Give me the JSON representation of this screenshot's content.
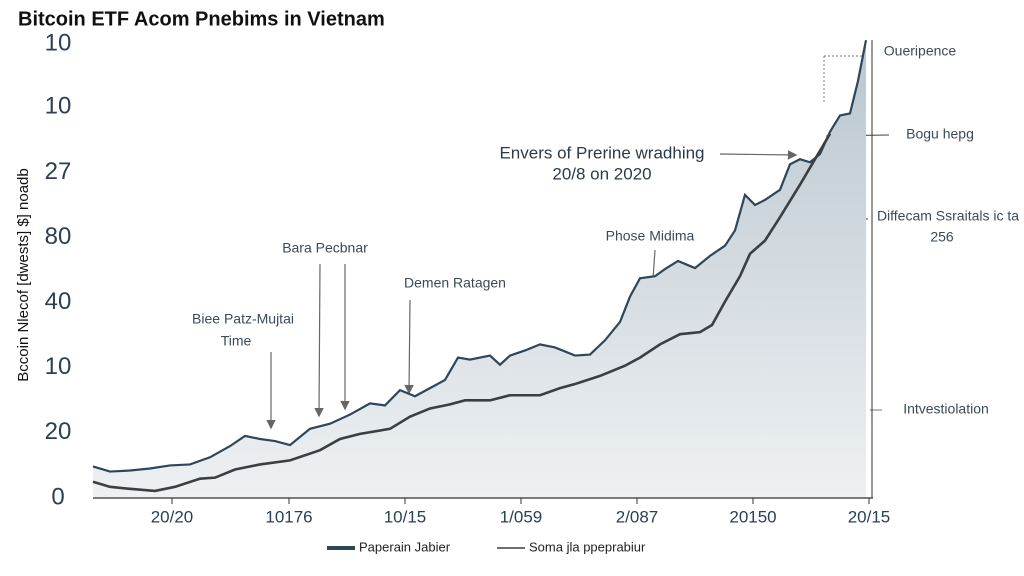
{
  "chart_data": {
    "type": "line",
    "title": "Bitcoin ETF Acom Pnebims in Vietnam",
    "y_label": "Bccoin Nlecof [dwests] $] noadb",
    "xlim": [
      0,
      777
    ],
    "ylim": [
      0,
      460
    ],
    "xticks": [
      {
        "value": 79,
        "label": "20/20"
      },
      {
        "value": 196,
        "label": "10176"
      },
      {
        "value": 312,
        "label": "10/15"
      },
      {
        "value": 428,
        "label": "1/059"
      },
      {
        "value": 544,
        "label": "2/087"
      },
      {
        "value": 660,
        "label": "20150"
      },
      {
        "value": 776,
        "label": "20/15"
      }
    ],
    "yticks": [
      0,
      {
        "value": 64,
        "label": "20"
      },
      {
        "value": 128,
        "label": "10"
      },
      {
        "value": 192,
        "label": "40"
      },
      {
        "value": 256,
        "label": "80"
      },
      {
        "value": 320,
        "label": "27"
      },
      {
        "value": 384,
        "label": "10"
      },
      {
        "value": 446,
        "label": "10"
      }
    ],
    "series": [
      {
        "name": "Paperain Jabier",
        "color": "#2f4659",
        "x": [
          0,
          17,
          37,
          57,
          77,
          97,
          117,
          137,
          152,
          167,
          182,
          197,
          217,
          237,
          257,
          277,
          292,
          307,
          322,
          337,
          352,
          365,
          377,
          397,
          407,
          417,
          432,
          447,
          462,
          482,
          497,
          512,
          527,
          537,
          547,
          562,
          572,
          585,
          602,
          617,
          632,
          642,
          652,
          662,
          672,
          687,
          697,
          707,
          717,
          727,
          737,
          747,
          757,
          765,
          773
        ],
        "values": [
          31,
          26,
          27,
          29,
          32,
          33,
          40,
          51,
          61,
          58,
          56,
          52,
          68,
          73,
          82,
          93,
          91,
          106,
          100,
          108,
          116,
          138,
          136,
          140,
          131,
          140,
          145,
          151,
          148,
          140,
          141,
          155,
          173,
          198,
          216,
          218,
          225,
          233,
          226,
          238,
          248,
          263,
          298,
          288,
          293,
          303,
          328,
          333,
          330,
          338,
          360,
          376,
          378,
          410,
          450
        ]
      },
      {
        "name": "Soma jla ppeprabiur",
        "color": "#3a3f44",
        "x": [
          0,
          17,
          37,
          62,
          82,
          107,
          122,
          142,
          167,
          197,
          227,
          247,
          267,
          297,
          317,
          337,
          357,
          372,
          397,
          417,
          447,
          467,
          482,
          507,
          532,
          547,
          567,
          587,
          607,
          619,
          632,
          647,
          657,
          672,
          687,
          707,
          722,
          737
        ],
        "values": [
          16,
          11,
          9,
          7,
          11,
          19,
          20,
          28,
          33,
          37,
          47,
          58,
          63,
          68,
          80,
          88,
          92,
          96,
          96,
          101,
          101,
          108,
          112,
          120,
          130,
          138,
          151,
          161,
          163,
          170,
          193,
          218,
          240,
          253,
          276,
          308,
          333,
          358
        ]
      }
    ],
    "annotations": [
      "Envers of Prerine wradhing",
      "20/8 on 2020",
      "Oueripence",
      "Bogu hepg",
      "Diffecam Ssraitals ic ta",
      "256",
      "Phose Midima",
      "Bara Pecbnar",
      "Demen Ratagen",
      "Biee Patz-Mujtai",
      "Time",
      "Intvestiolation"
    ]
  }
}
